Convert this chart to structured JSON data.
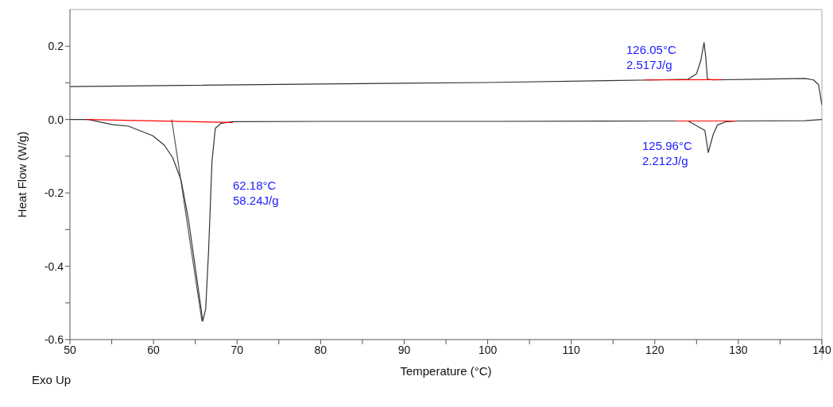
{
  "chart_data": {
    "type": "line",
    "xlabel": "Temperature (°C)",
    "ylabel": "Heat Flow (W/g)",
    "xlim": [
      50,
      140
    ],
    "ylim": [
      -0.6,
      0.3
    ],
    "xticks": [
      50,
      {
        "value": 55,
        "label": null
      },
      60,
      {
        "value": 65,
        "label": null
      },
      70,
      {
        "value": 75,
        "label": null
      },
      80,
      {
        "value": 85,
        "label": null
      },
      90,
      {
        "value": 95,
        "label": null
      },
      100,
      {
        "value": 105,
        "label": null
      },
      110,
      {
        "value": 115,
        "label": null
      },
      120,
      {
        "value": 125,
        "label": null
      },
      130,
      {
        "value": 135,
        "label": null
      },
      140
    ],
    "yticks": [
      -0.6,
      {
        "value": -0.5,
        "label": null
      },
      -0.4,
      {
        "value": -0.3,
        "label": null
      },
      -0.2,
      {
        "value": -0.1,
        "label": null
      },
      {
        "value": 0,
        "label": "0.0"
      },
      {
        "value": 0.1,
        "label": null
      },
      0.2
    ],
    "marker": "none",
    "line_style": "solid",
    "series": [
      {
        "color": "#333333",
        "x": [
          50,
          52.2,
          55.1,
          57,
          59.9,
          61.3,
          62.3,
          63.3,
          64.2,
          65.2,
          65.9,
          66.25,
          66.6,
          67,
          67.4,
          68.1,
          69.5,
          80,
          100,
          120,
          124,
          126,
          126.4,
          127,
          127.5,
          128.5,
          130,
          138,
          140
        ],
        "values": [
          0,
          0,
          -0.014,
          -0.018,
          -0.044,
          -0.07,
          -0.104,
          -0.165,
          -0.275,
          -0.435,
          -0.55,
          -0.516,
          -0.355,
          -0.114,
          -0.024,
          -0.01,
          -0.006,
          -0.005,
          -0.005,
          -0.004,
          -0.004,
          -0.03,
          -0.09,
          -0.04,
          -0.015,
          -0.006,
          -0.004,
          -0.003,
          0
        ]
      },
      {
        "color": "#333333",
        "x": [
          50,
          80,
          100,
          120,
          124,
          125,
          125.5,
          125.9,
          126.1,
          126.3,
          127,
          132,
          138,
          139,
          139.6,
          140
        ],
        "values": [
          0.09,
          0.097,
          0.101,
          0.108,
          0.11,
          0.125,
          0.16,
          0.21,
          0.17,
          0.11,
          0.108,
          0.11,
          0.112,
          0.108,
          0.095,
          0.04
        ]
      },
      {
        "color": "#555555",
        "x": [
          62.18,
          65.8
        ],
        "values": [
          0,
          -0.55
        ]
      },
      {
        "color": "#ff0000",
        "x": [
          52,
          69.5
        ],
        "values": [
          0,
          -0.008
        ]
      },
      {
        "color": "#ff0000",
        "x": [
          122.5,
          129.8
        ],
        "values": [
          -0.004,
          -0.004
        ]
      },
      {
        "color": "#ff0000",
        "x": [
          118.8,
          128
        ],
        "values": [
          0.108,
          0.109
        ]
      }
    ],
    "annotations": [
      "62.18°C\n58.24J/g",
      "126.05°C\n2.517J/g",
      "125.96°C\n2.212J/g",
      "Exo Up"
    ]
  }
}
